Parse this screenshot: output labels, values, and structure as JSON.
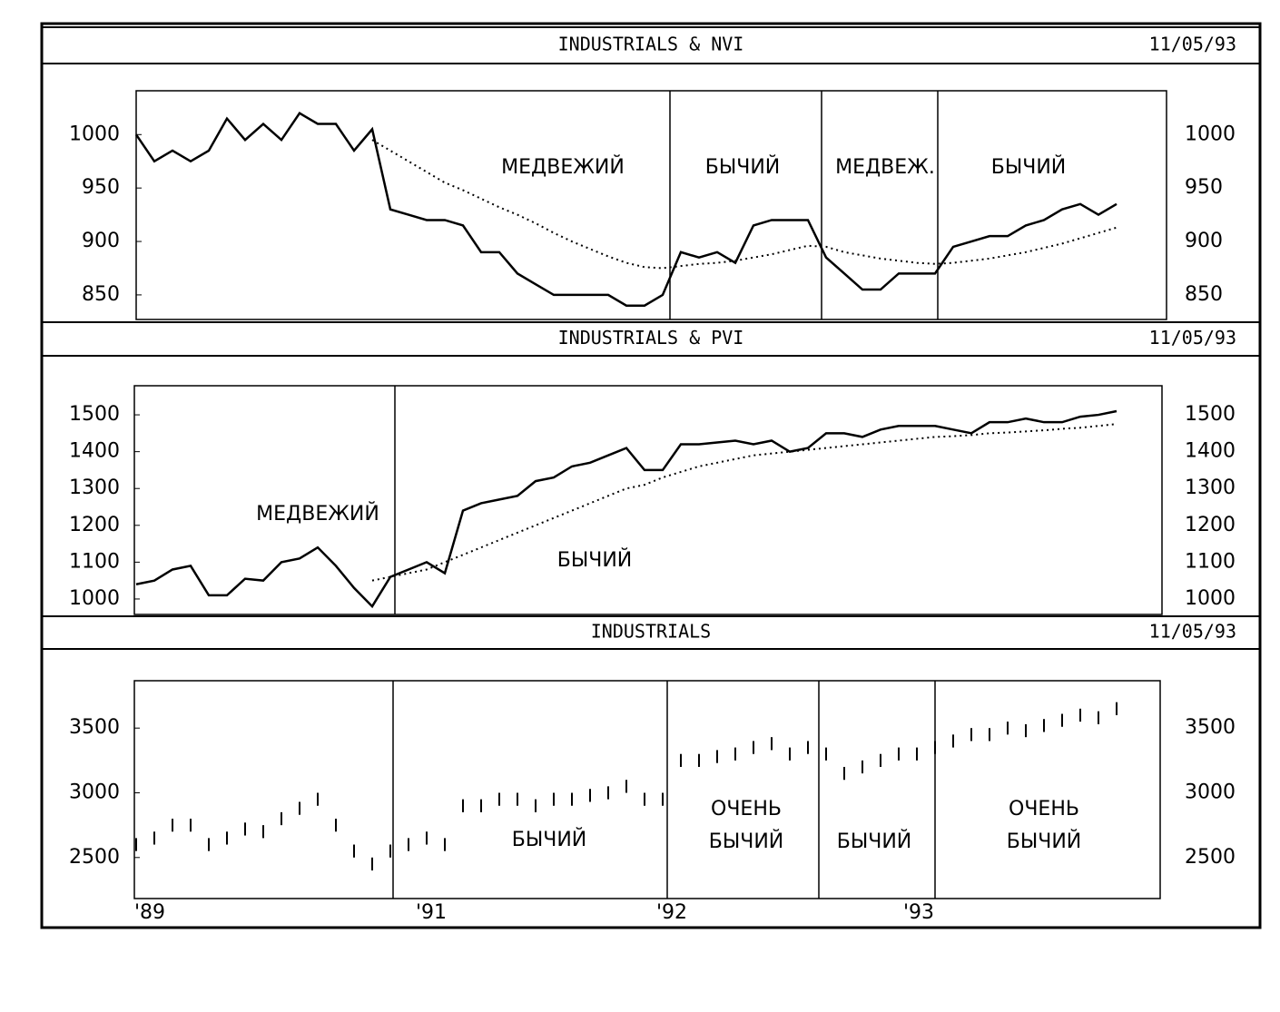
{
  "chart_data": [
    {
      "type": "line",
      "title": "INDUSTRIALS & NVI",
      "date": "11/05/93",
      "ylim": [
        827,
        1041
      ],
      "yticks": [
        850,
        900,
        950,
        1000
      ],
      "annotations": [
        "МЕДВЕЖИЙ",
        "БЫЧИЙ",
        "МЕДВЕЖ.",
        "БЫЧИЙ"
      ],
      "series": [
        {
          "style": "solid",
          "color": "#000000",
          "values": [
            1000,
            975,
            985,
            975,
            985,
            1015,
            995,
            1010,
            995,
            1020,
            1010,
            1010,
            985,
            1005,
            930,
            925,
            920,
            920,
            915,
            890,
            890,
            870,
            860,
            850,
            850,
            850,
            850,
            840,
            840,
            850,
            890,
            885,
            890,
            880,
            915,
            920,
            920,
            920,
            885,
            870,
            855,
            855,
            870,
            870,
            870,
            895,
            900,
            905,
            905,
            915,
            920,
            930,
            935,
            925,
            935
          ]
        },
        {
          "style": "dotted",
          "color": "#000000",
          "values": [
            null,
            null,
            null,
            null,
            null,
            null,
            null,
            null,
            null,
            null,
            null,
            null,
            null,
            995,
            985,
            975,
            965,
            955,
            948,
            940,
            932,
            925,
            917,
            908,
            900,
            893,
            886,
            880,
            876,
            875,
            877,
            879,
            880,
            882,
            885,
            888,
            892,
            896,
            895,
            890,
            887,
            884,
            882,
            880,
            879,
            880,
            882,
            884,
            887,
            890,
            894,
            898,
            903,
            908,
            913
          ]
        }
      ]
    },
    {
      "type": "line",
      "title": "INDUSTRIALS & PVI",
      "date": "11/05/93",
      "ylim": [
        958,
        1579
      ],
      "yticks": [
        1000,
        1100,
        1200,
        1300,
        1400,
        1500
      ],
      "annotations": [
        "МЕДВЕЖИЙ",
        "БЫЧИЙ"
      ],
      "series": [
        {
          "style": "solid",
          "color": "#000000",
          "values": [
            1040,
            1050,
            1080,
            1090,
            1010,
            1010,
            1055,
            1050,
            1100,
            1110,
            1140,
            1090,
            1030,
            980,
            1060,
            1080,
            1100,
            1070,
            1240,
            1260,
            1270,
            1280,
            1320,
            1330,
            1360,
            1370,
            1390,
            1410,
            1350,
            1350,
            1420,
            1420,
            1425,
            1430,
            1420,
            1430,
            1400,
            1410,
            1450,
            1450,
            1440,
            1460,
            1470,
            1470,
            1470,
            1460,
            1450,
            1480,
            1480,
            1490,
            1480,
            1480,
            1495,
            1500,
            1510
          ]
        },
        {
          "style": "dotted",
          "color": "#000000",
          "values": [
            null,
            null,
            null,
            null,
            null,
            null,
            null,
            null,
            null,
            null,
            null,
            null,
            null,
            1050,
            1060,
            1070,
            1080,
            1100,
            1120,
            1140,
            1160,
            1180,
            1200,
            1220,
            1240,
            1260,
            1280,
            1300,
            1310,
            1330,
            1345,
            1360,
            1370,
            1380,
            1390,
            1395,
            1400,
            1405,
            1410,
            1415,
            1420,
            1425,
            1430,
            1435,
            1440,
            1442,
            1445,
            1450,
            1452,
            1455,
            1458,
            1462,
            1465,
            1470,
            1475
          ]
        }
      ]
    },
    {
      "type": "hilo",
      "title": "INDUSTRIALS",
      "date": "11/05/93",
      "ylim": [
        2183,
        3866
      ],
      "yticks": [
        2500,
        3000,
        3500
      ],
      "x_tick_labels": [
        "'89",
        "'91",
        "'92",
        "'93"
      ],
      "annotations": [
        "БЫЧИЙ",
        "ОЧЕНЬ",
        "БЫЧИЙ",
        "БЫЧИЙ",
        "ОЧЕНЬ",
        "БЫЧИЙ"
      ],
      "color": "#000000",
      "high": [
        2650,
        2700,
        2800,
        2800,
        2650,
        2700,
        2770,
        2750,
        2850,
        2930,
        3000,
        2800,
        2600,
        2500,
        2600,
        2650,
        2700,
        2650,
        2950,
        2950,
        3000,
        3000,
        2950,
        3000,
        3000,
        3030,
        3050,
        3100,
        3000,
        3000,
        3300,
        3300,
        3330,
        3350,
        3400,
        3430,
        3350,
        3400,
        3350,
        3200,
        3250,
        3300,
        3350,
        3350,
        3400,
        3450,
        3500,
        3500,
        3550,
        3530,
        3570,
        3610,
        3650,
        3630,
        3700
      ],
      "low": [
        2550,
        2600,
        2700,
        2700,
        2550,
        2600,
        2670,
        2650,
        2750,
        2830,
        2900,
        2700,
        2500,
        2400,
        2500,
        2550,
        2600,
        2550,
        2850,
        2850,
        2900,
        2900,
        2850,
        2900,
        2900,
        2930,
        2950,
        3000,
        2900,
        2900,
        3200,
        3200,
        3230,
        3250,
        3300,
        3330,
        3250,
        3300,
        3250,
        3100,
        3150,
        3200,
        3250,
        3250,
        3300,
        3350,
        3400,
        3400,
        3450,
        3430,
        3470,
        3510,
        3550,
        3530,
        3600
      ]
    }
  ]
}
